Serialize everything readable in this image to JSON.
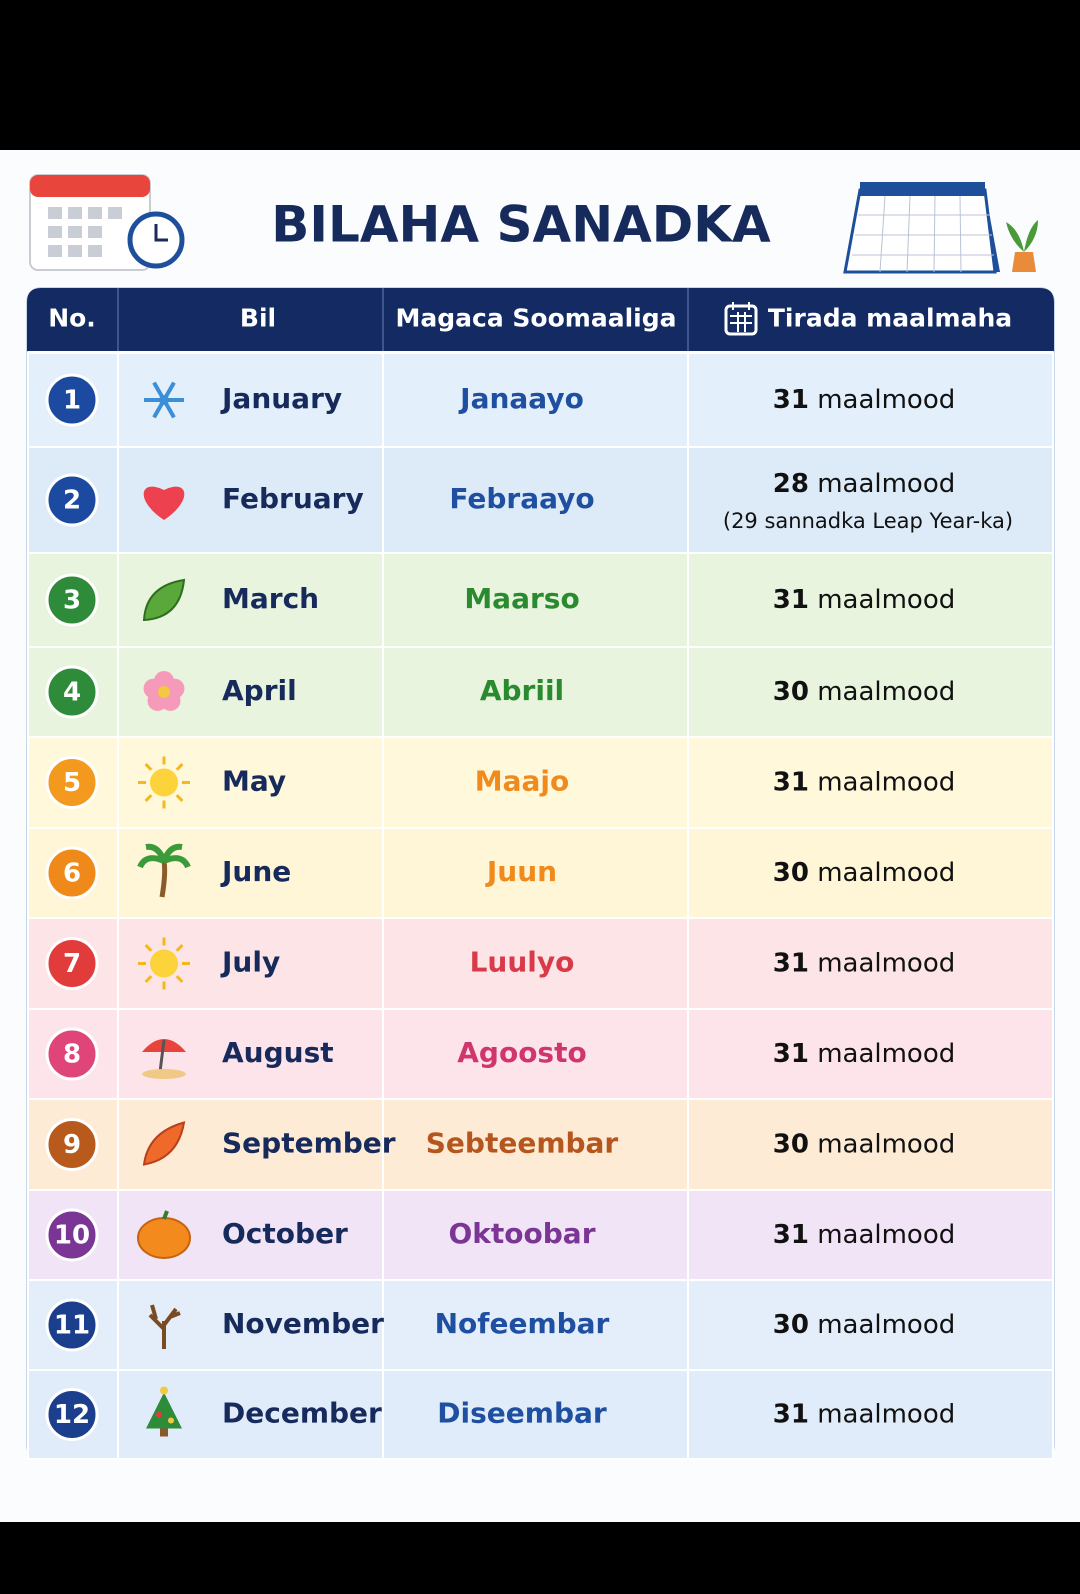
{
  "header": {
    "title": "BILAHA SANADKA"
  },
  "table": {
    "headers": [
      "No.",
      "Bil",
      "Magaca Soomaaliga",
      "Tirada maalmaha"
    ],
    "rows": [
      {
        "no": 1,
        "month": "January",
        "somali": "Janaayo",
        "days": 31,
        "unit": "maalmood"
      },
      {
        "no": 2,
        "month": "February",
        "somali": "Febraayo",
        "days": 28,
        "unit": "maalmood",
        "note": "(29 sannadka Leap Year-ka)"
      },
      {
        "no": 3,
        "month": "March",
        "somali": "Maarso",
        "days": 31,
        "unit": "maalmood"
      },
      {
        "no": 4,
        "month": "April",
        "somali": "Abriil",
        "days": 30,
        "unit": "maalmood"
      },
      {
        "no": 5,
        "month": "May",
        "somali": "Maajo",
        "days": 31,
        "unit": "maalmood"
      },
      {
        "no": 6,
        "month": "June",
        "somali": "Juun",
        "days": 30,
        "unit": "maalmood"
      },
      {
        "no": 7,
        "month": "July",
        "somali": "Luulyo",
        "days": 31,
        "unit": "maalmood"
      },
      {
        "no": 8,
        "month": "August",
        "somali": "Agoosto",
        "days": 31,
        "unit": "maalmood"
      },
      {
        "no": 9,
        "month": "September",
        "somali": "Sebteembar",
        "days": 30,
        "unit": "maalmood"
      },
      {
        "no": 10,
        "month": "October",
        "somali": "Oktoobar",
        "days": 31,
        "unit": "maalmood"
      },
      {
        "no": 11,
        "month": "November",
        "somali": "Nofeembar",
        "days": 30,
        "unit": "maalmood"
      },
      {
        "no": 12,
        "month": "December",
        "somali": "Diseembar",
        "days": 31,
        "unit": "maalmood"
      }
    ]
  }
}
